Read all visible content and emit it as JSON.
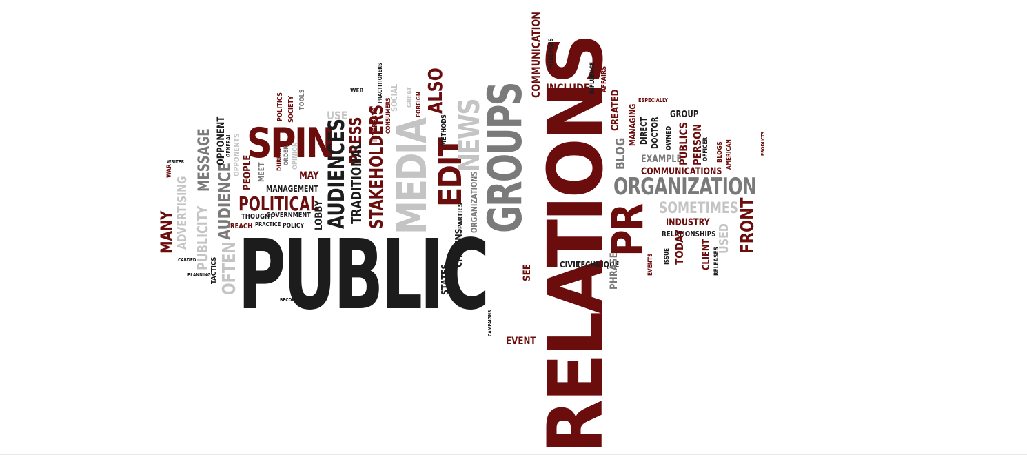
{
  "colors": {
    "dark": "#1c1c1c",
    "maroon": "#6b0d0d",
    "gray": "#7a7a7a",
    "light": "#c4c4c4"
  },
  "words": {
    "public": "PUBLIC",
    "relations": "RELATIONS",
    "groups": "GROUPS",
    "media": "MEDIA",
    "pr": "PR",
    "spin": "SPIN",
    "edit": "EDIT",
    "news": "NEWS",
    "organization": "ORGANIZATION",
    "audiences": "AUDIENCES",
    "stakeholders": "STAKEHOLDERS",
    "political": "POLITICAL",
    "audience": "AUDIENCE",
    "many": "MANY",
    "often": "OFTEN",
    "message": "MESSAGE",
    "advertising": "ADVERTISING",
    "publicity": "PUBLICITY",
    "press": "PRESS",
    "also": "ALSO",
    "traditional": "TRADITIONAL",
    "communication": "COMMUNICATION",
    "include": "INCLUDE",
    "front": "FRONT",
    "sometimes": "SOMETIMES",
    "communications": "COMMUNICATIONS",
    "industry": "INDUSTRY",
    "relationships": "RELATIONSHIPS",
    "blog": "BLOG",
    "created": "CREATED",
    "example": "EXAMPLE",
    "group": "GROUP",
    "publics": "PUBLICS",
    "person": "PERSON",
    "used": "USED",
    "client": "CLIENT",
    "today": "TODAY",
    "civil": "CIVIL",
    "technique": "TECHNIQUE",
    "phrase": "PHRASE",
    "event": "EVENT",
    "see": "SEE",
    "states": "STATES",
    "citizens": "CITIZENS",
    "lobby": "LOBBY",
    "may": "MAY",
    "management": "MANAGEMENT",
    "people": "PEOPLE",
    "opponent": "OPPONENT",
    "opponents": "OPPONENTS",
    "meet": "MEET",
    "government": "GOVERNMENT",
    "thought": "THOUGHT",
    "reach": "REACH",
    "practice": "PRACTICE",
    "policy": "POLICY",
    "tactics": "TACTICS",
    "use": "USE",
    "web": "WEB",
    "managing": "MANAGING",
    "direct": "DIRECT",
    "doctor": "DOCTOR",
    "affairs": "AFFAIRS",
    "influence": "INFLUENCE",
    "messages": "MESSAGES",
    "especially": "ESPECIALLY",
    "organizations": "ORGANIZATIONS",
    "parties": "PARTIES",
    "methods": "METHODS",
    "social": "SOCIAL",
    "politics": "POLITICS",
    "society": "SOCIETY",
    "tools": "TOOLS",
    "opinion": "OPINION",
    "war": "WAR",
    "interests": "INTERESTS",
    "practitioners": "PRACTITIONERS",
    "products": "PRODUCTS",
    "releases": "RELEASES",
    "issue": "ISSUE",
    "events": "EVENTS",
    "become": "BECOME",
    "campaigns": "CAMPAIGNS",
    "owned": "OWNED",
    "officer": "OFFICER",
    "blogs": "BLOGS",
    "american": "AMERICAN",
    "planning": "PLANNING",
    "cabled": "CARDED",
    "great": "GREAT",
    "foreign": "FOREIGN",
    "writer": "WRITER",
    "general": "GENERAL",
    "during": "DURING",
    "order": "ORDER",
    "consumers": "CONSUMERS"
  }
}
